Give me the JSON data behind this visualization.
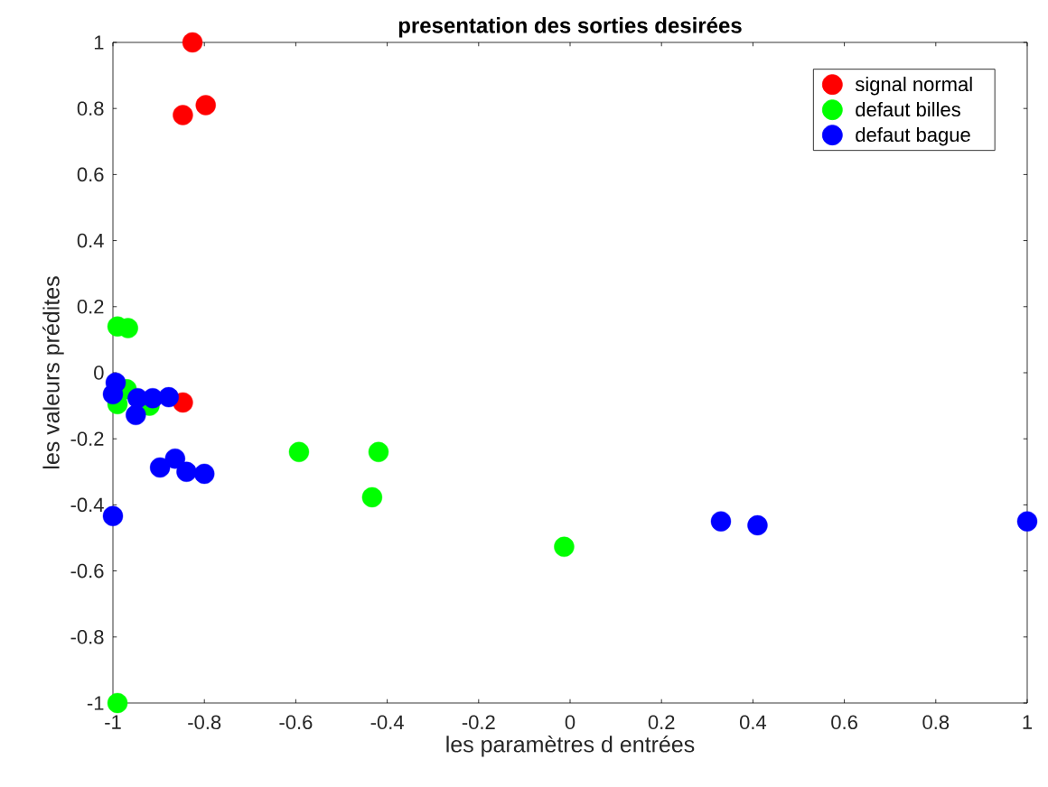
{
  "chart_data": {
    "type": "scatter",
    "title": "**presentation des sorties desirées**",
    "xlabel": "les paramètres d entrées",
    "ylabel": "les valeurs prédites",
    "xlim": [
      -1,
      1
    ],
    "ylim": [
      -1,
      1
    ],
    "xticks": [
      -1,
      -0.8,
      -0.6,
      -0.4,
      -0.2,
      0,
      0.2,
      0.4,
      0.6,
      0.8,
      1
    ],
    "yticks": [
      -1,
      -0.8,
      -0.6,
      -0.4,
      -0.2,
      0,
      0.2,
      0.4,
      0.6,
      0.8,
      1
    ],
    "grid": false,
    "legend": "top right",
    "series": [
      {
        "name": "signal normal",
        "color": "#ff0000",
        "x": [
          -0.826,
          -0.847,
          -0.797,
          -0.847
        ],
        "values": [
          1.0,
          0.78,
          0.81,
          -0.09
        ]
      },
      {
        "name": "defaut billes",
        "color": "#00ff00",
        "x": [
          -0.99,
          -0.967,
          -0.99,
          -0.97,
          -0.92,
          -0.593,
          -0.419,
          -0.433,
          -0.013,
          -0.99
        ],
        "values": [
          0.14,
          0.135,
          -0.095,
          -0.05,
          -0.1,
          -0.24,
          -0.24,
          -0.377,
          -0.527,
          -1.0
        ]
      },
      {
        "name": "defaut bague",
        "color": "#0000ff",
        "x": [
          -0.994,
          -1.0,
          -0.946,
          -0.913,
          -0.878,
          -0.95,
          -0.897,
          -0.864,
          -0.839,
          -0.8,
          -1.0,
          0.33,
          0.41,
          1.0
        ],
        "values": [
          -0.03,
          -0.065,
          -0.077,
          -0.077,
          -0.074,
          -0.128,
          -0.287,
          -0.26,
          -0.3,
          -0.306,
          -0.434,
          -0.45,
          -0.462,
          -0.45
        ]
      }
    ]
  }
}
